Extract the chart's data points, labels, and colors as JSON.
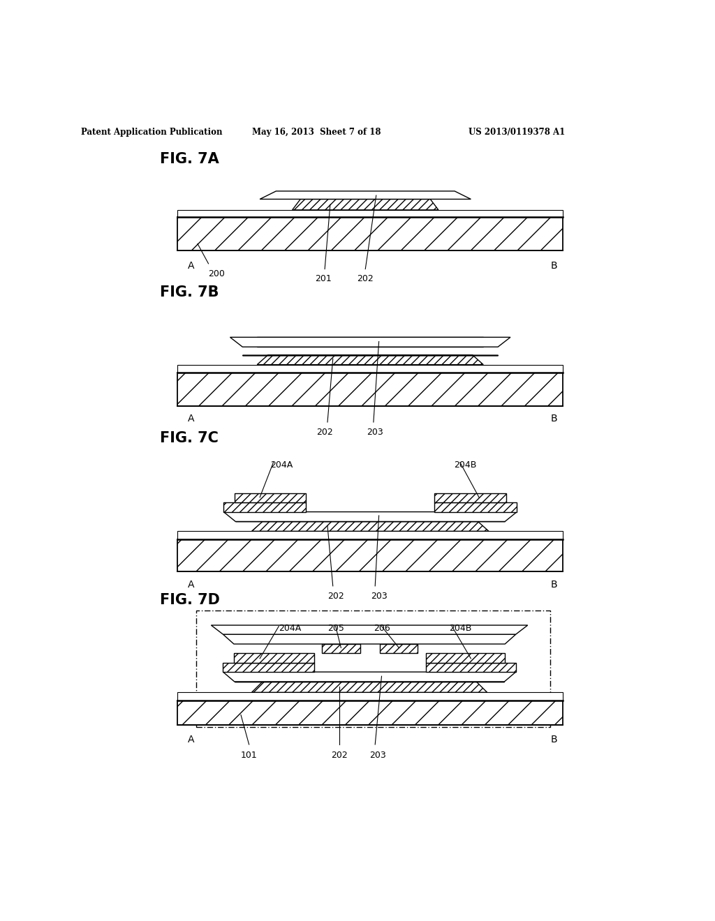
{
  "bg_color": "#ffffff",
  "header_left": "Patent Application Publication",
  "header_center": "May 16, 2013  Sheet 7 of 18",
  "header_right": "US 2013/0119378 A1",
  "lw_thick": 1.5,
  "lw_med": 1.0,
  "lw_thin": 0.7
}
